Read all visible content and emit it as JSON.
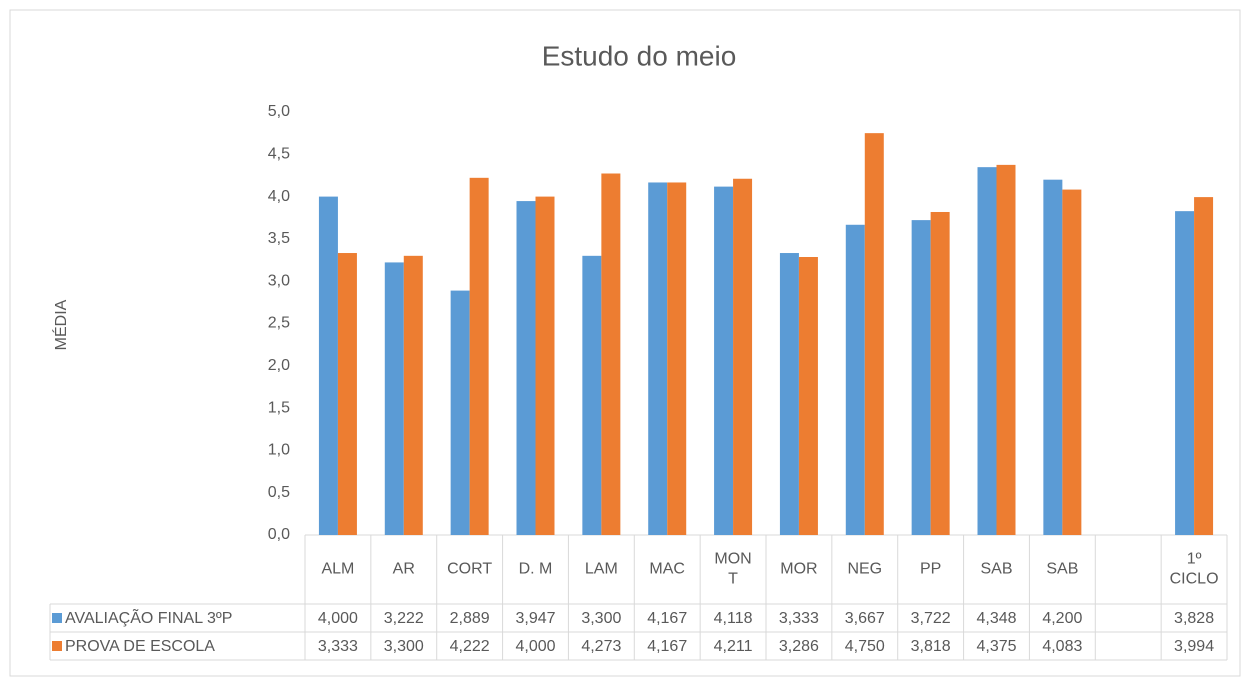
{
  "chart_data": {
    "type": "bar",
    "title": "Estudo do meio",
    "y_label": "MÉDIA",
    "categories": [
      "ALM",
      "AR",
      "CORT",
      "D. M",
      "LAM",
      "MAC",
      "MON\nT",
      "MOR",
      "NEG",
      "PP",
      "SAB",
      "SAB",
      null,
      "1º CICLO"
    ],
    "series": [
      {
        "name": "AVALIAÇÃO FINAL 3ºP",
        "color": "#5b9bd5",
        "values": [
          4.0,
          3.222,
          2.889,
          3.947,
          3.3,
          4.167,
          4.118,
          3.333,
          3.667,
          3.722,
          4.348,
          4.2,
          null,
          3.828
        ],
        "value_labels": [
          "4,000",
          "3,222",
          "2,889",
          "3,947",
          "3,300",
          "4,167",
          "4,118",
          "3,333",
          "3,667",
          "3,722",
          "4,348",
          "4,200",
          null,
          "3,828"
        ]
      },
      {
        "name": "PROVA DE ESCOLA",
        "color": "#ed7d31",
        "values": [
          3.333,
          3.3,
          4.222,
          4.0,
          4.273,
          4.167,
          4.211,
          3.286,
          4.75,
          3.818,
          4.375,
          4.083,
          null,
          3.994
        ],
        "value_labels": [
          "3,333",
          "3,300",
          "4,222",
          "4,000",
          "4,273",
          "4,167",
          "4,211",
          "3,286",
          "4,750",
          "3,818",
          "4,375",
          "4,083",
          null,
          "3,994"
        ]
      }
    ],
    "ylim": [
      0,
      5
    ],
    "yticks": [
      {
        "value": 0,
        "label": "0,0"
      },
      {
        "value": 0.5,
        "label": "0,5"
      },
      {
        "value": 1,
        "label": "1,0"
      },
      {
        "value": 1.5,
        "label": "1,5"
      },
      {
        "value": 2,
        "label": "2,0"
      },
      {
        "value": 2.5,
        "label": "2,5"
      },
      {
        "value": 3,
        "label": "3,0"
      },
      {
        "value": 3.5,
        "label": "3,5"
      },
      {
        "value": 4,
        "label": "4,0"
      },
      {
        "value": 4.5,
        "label": "4,5"
      },
      {
        "value": 5,
        "label": "5,0"
      }
    ],
    "grid": false,
    "legend": "table"
  }
}
